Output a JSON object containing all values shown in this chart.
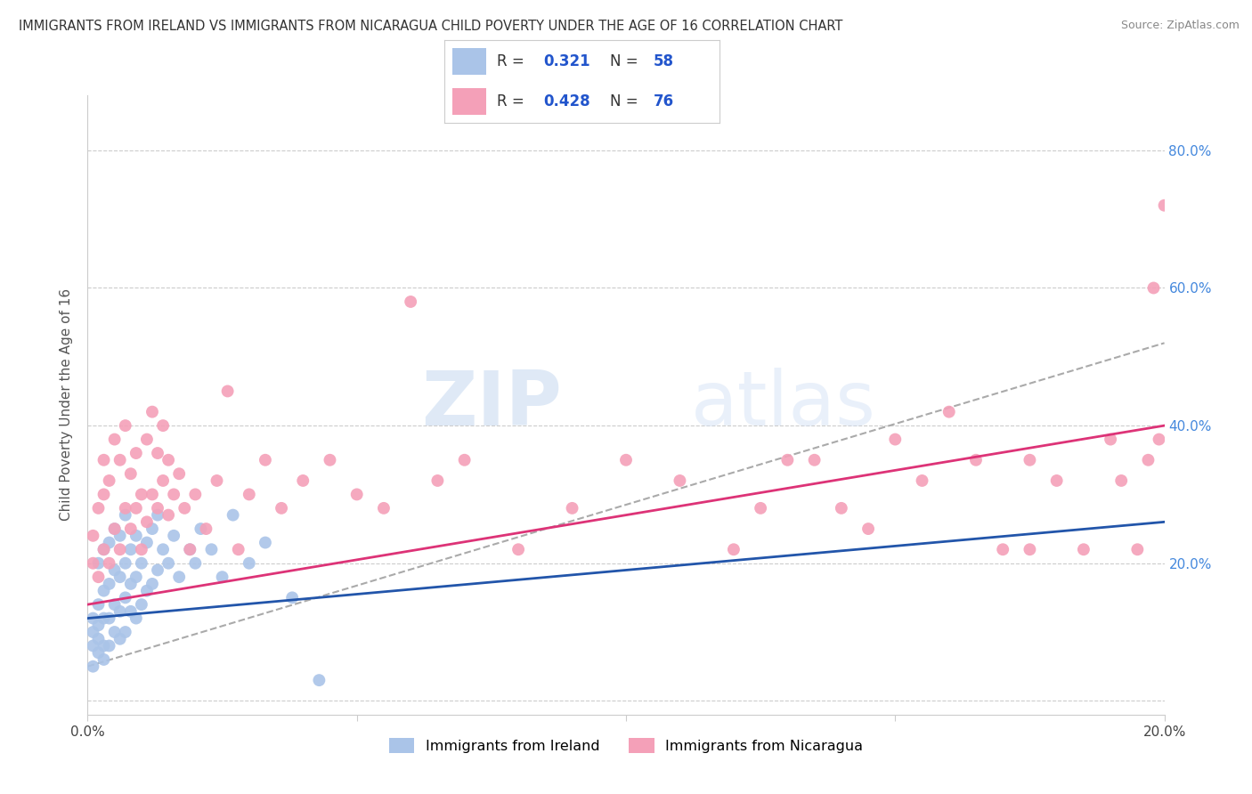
{
  "title": "IMMIGRANTS FROM IRELAND VS IMMIGRANTS FROM NICARAGUA CHILD POVERTY UNDER THE AGE OF 16 CORRELATION CHART",
  "source": "Source: ZipAtlas.com",
  "ylabel": "Child Poverty Under the Age of 16",
  "xlim": [
    0.0,
    0.2
  ],
  "ylim": [
    -0.02,
    0.88
  ],
  "xticks": [
    0.0,
    0.05,
    0.1,
    0.15,
    0.2
  ],
  "yticks": [
    0.0,
    0.2,
    0.4,
    0.6,
    0.8
  ],
  "ireland_color": "#aac4e8",
  "nicaragua_color": "#f4a0b8",
  "ireland_line_color": "#2255aa",
  "nicaragua_line_color": "#dd3377",
  "dashed_line_color": "#aaaaaa",
  "ireland_R": 0.321,
  "ireland_N": 58,
  "nicaragua_R": 0.428,
  "nicaragua_N": 76,
  "legend_label_ireland": "Immigrants from Ireland",
  "legend_label_nicaragua": "Immigrants from Nicaragua",
  "watermark_zip": "ZIP",
  "watermark_atlas": "atlas",
  "grid_color": "#cccccc",
  "background_color": "#ffffff",
  "ireland_x": [
    0.001,
    0.001,
    0.001,
    0.001,
    0.002,
    0.002,
    0.002,
    0.002,
    0.002,
    0.003,
    0.003,
    0.003,
    0.003,
    0.003,
    0.004,
    0.004,
    0.004,
    0.004,
    0.005,
    0.005,
    0.005,
    0.005,
    0.006,
    0.006,
    0.006,
    0.006,
    0.007,
    0.007,
    0.007,
    0.007,
    0.008,
    0.008,
    0.008,
    0.009,
    0.009,
    0.009,
    0.01,
    0.01,
    0.011,
    0.011,
    0.012,
    0.012,
    0.013,
    0.013,
    0.014,
    0.015,
    0.016,
    0.017,
    0.019,
    0.02,
    0.021,
    0.023,
    0.025,
    0.027,
    0.03,
    0.033,
    0.038,
    0.043
  ],
  "ireland_y": [
    0.05,
    0.08,
    0.1,
    0.12,
    0.07,
    0.09,
    0.11,
    0.14,
    0.2,
    0.06,
    0.08,
    0.12,
    0.16,
    0.22,
    0.08,
    0.12,
    0.17,
    0.23,
    0.1,
    0.14,
    0.19,
    0.25,
    0.09,
    0.13,
    0.18,
    0.24,
    0.1,
    0.15,
    0.2,
    0.27,
    0.13,
    0.17,
    0.22,
    0.12,
    0.18,
    0.24,
    0.14,
    0.2,
    0.16,
    0.23,
    0.17,
    0.25,
    0.19,
    0.27,
    0.22,
    0.2,
    0.24,
    0.18,
    0.22,
    0.2,
    0.25,
    0.22,
    0.18,
    0.27,
    0.2,
    0.23,
    0.15,
    0.03
  ],
  "nicaragua_x": [
    0.001,
    0.001,
    0.002,
    0.002,
    0.003,
    0.003,
    0.003,
    0.004,
    0.004,
    0.005,
    0.005,
    0.006,
    0.006,
    0.007,
    0.007,
    0.008,
    0.008,
    0.009,
    0.009,
    0.01,
    0.01,
    0.011,
    0.011,
    0.012,
    0.012,
    0.013,
    0.013,
    0.014,
    0.014,
    0.015,
    0.015,
    0.016,
    0.017,
    0.018,
    0.019,
    0.02,
    0.022,
    0.024,
    0.026,
    0.028,
    0.03,
    0.033,
    0.036,
    0.04,
    0.045,
    0.05,
    0.055,
    0.06,
    0.065,
    0.07,
    0.08,
    0.09,
    0.1,
    0.11,
    0.12,
    0.13,
    0.14,
    0.15,
    0.16,
    0.17,
    0.175,
    0.18,
    0.185,
    0.19,
    0.192,
    0.195,
    0.197,
    0.198,
    0.199,
    0.2,
    0.175,
    0.165,
    0.155,
    0.145,
    0.135,
    0.125
  ],
  "nicaragua_y": [
    0.2,
    0.24,
    0.18,
    0.28,
    0.22,
    0.3,
    0.35,
    0.2,
    0.32,
    0.25,
    0.38,
    0.22,
    0.35,
    0.28,
    0.4,
    0.25,
    0.33,
    0.28,
    0.36,
    0.22,
    0.3,
    0.26,
    0.38,
    0.3,
    0.42,
    0.28,
    0.36,
    0.32,
    0.4,
    0.27,
    0.35,
    0.3,
    0.33,
    0.28,
    0.22,
    0.3,
    0.25,
    0.32,
    0.45,
    0.22,
    0.3,
    0.35,
    0.28,
    0.32,
    0.35,
    0.3,
    0.28,
    0.58,
    0.32,
    0.35,
    0.22,
    0.28,
    0.35,
    0.32,
    0.22,
    0.35,
    0.28,
    0.38,
    0.42,
    0.22,
    0.35,
    0.32,
    0.22,
    0.38,
    0.32,
    0.22,
    0.35,
    0.6,
    0.38,
    0.72,
    0.22,
    0.35,
    0.32,
    0.25,
    0.35,
    0.28
  ],
  "ireland_trend": [
    0.12,
    0.26
  ],
  "nicaragua_trend": [
    0.14,
    0.4
  ],
  "dashed_trend": [
    0.05,
    0.52
  ]
}
